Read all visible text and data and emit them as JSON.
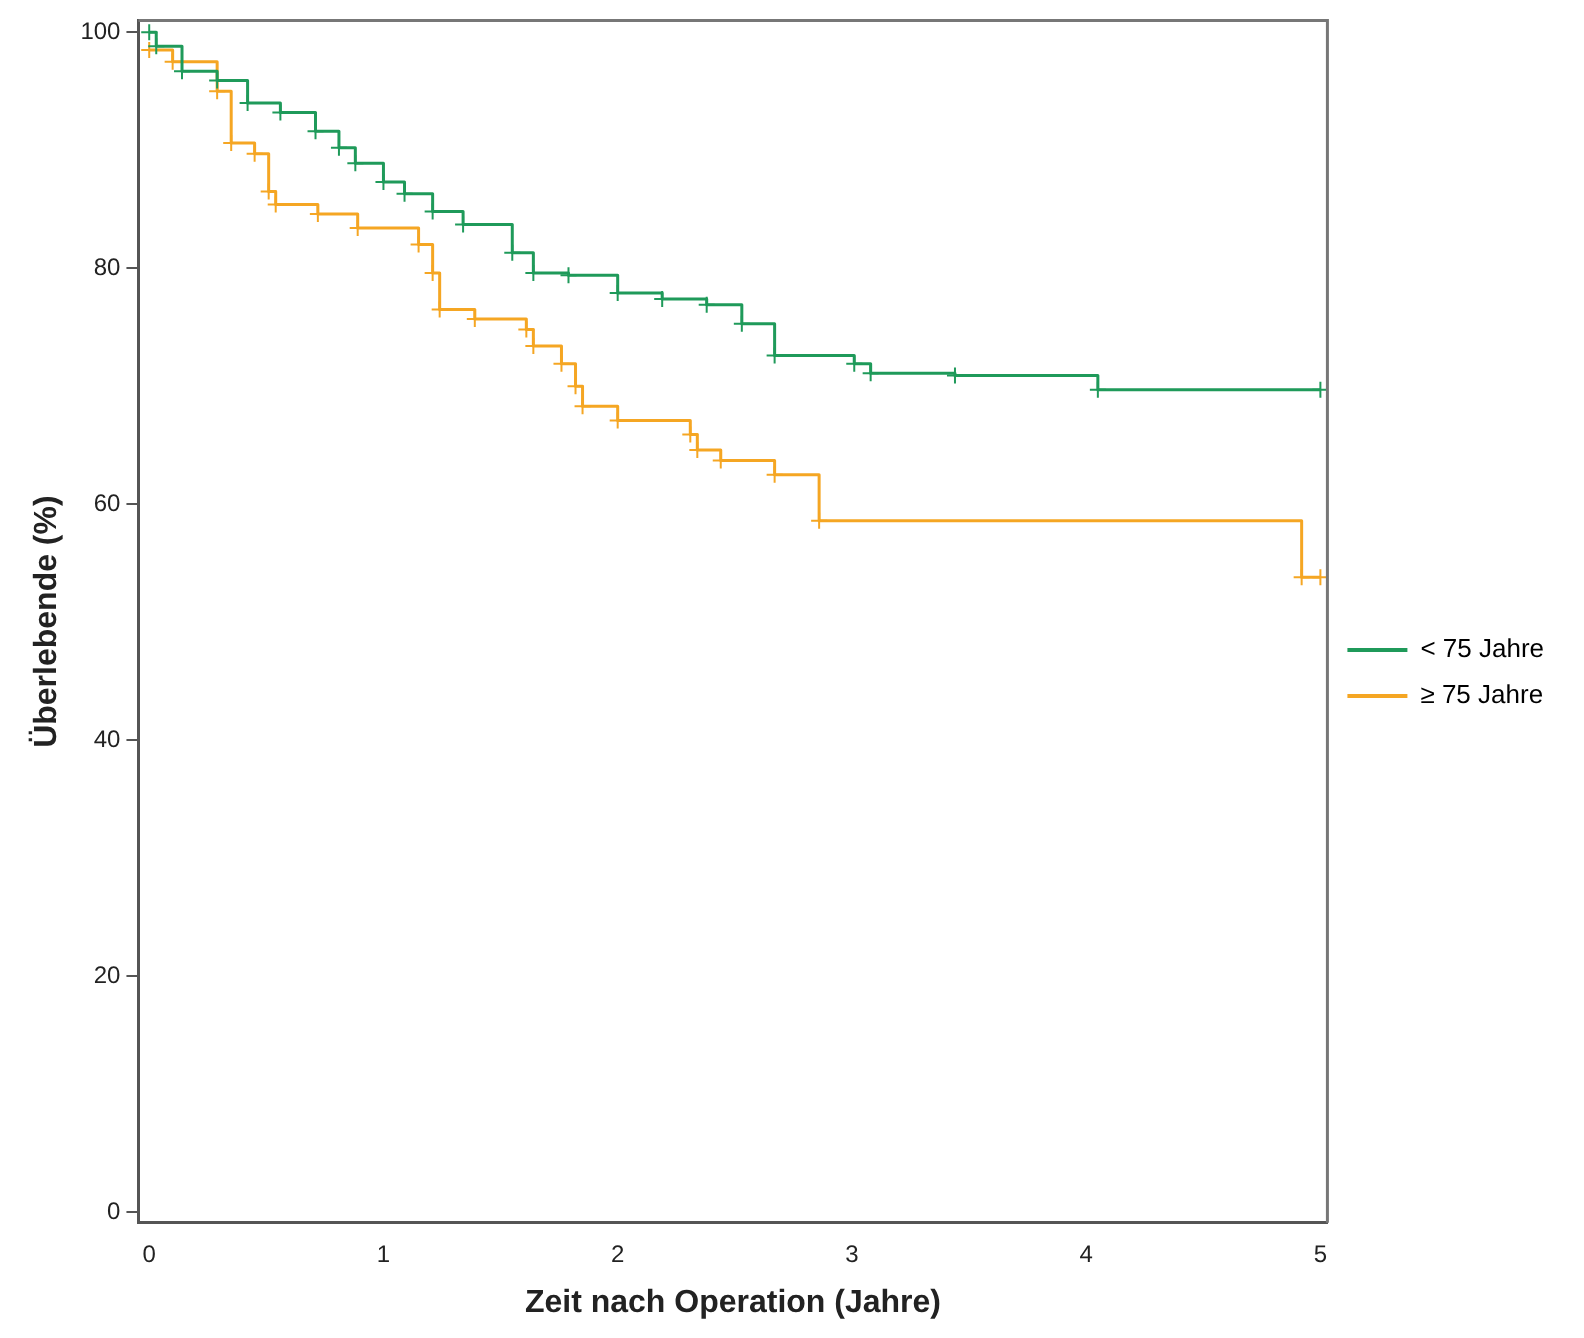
{
  "chart_data": {
    "type": "step",
    "xlabel": "Zeit nach Operation (Jahre)",
    "ylabel": "Überlebende (%)",
    "xlim": [
      -0.046,
      5.03
    ],
    "ylim": [
      -0.9,
      101
    ],
    "xticks": [
      0,
      1,
      2,
      3,
      4,
      5
    ],
    "yticks": [
      0,
      20,
      40,
      60,
      80,
      100
    ],
    "grid": false,
    "legend": "right",
    "marker": "cross",
    "line_style": "solid",
    "series": [
      {
        "name": "< 75 Jahre",
        "color": "#1f9a5a",
        "x": [
          0,
          0.03,
          0.14,
          0.29,
          0.42,
          0.56,
          0.71,
          0.81,
          0.88,
          1.0,
          1.09,
          1.21,
          1.34,
          1.55,
          1.64,
          1.79,
          2.0,
          2.19,
          2.38,
          2.53,
          2.67,
          3.01,
          3.08,
          3.44,
          4.05,
          5.0
        ],
        "values": [
          100,
          98.8,
          96.7,
          95.9,
          94,
          93.2,
          91.6,
          90.2,
          88.9,
          87.3,
          86.3,
          84.8,
          83.7,
          81.3,
          79.6,
          79.4,
          77.9,
          77.4,
          76.9,
          75.3,
          72.6,
          71.9,
          71.1,
          70.9,
          69.7,
          69.7
        ]
      },
      {
        "name": "≥ 75 Jahre",
        "color": "#f5a623",
        "x": [
          0,
          0.1,
          0.29,
          0.35,
          0.45,
          0.51,
          0.54,
          0.72,
          0.89,
          1.15,
          1.21,
          1.24,
          1.39,
          1.61,
          1.64,
          1.76,
          1.82,
          1.85,
          2.0,
          2.31,
          2.34,
          2.44,
          2.67,
          2.86,
          4.92,
          5.0
        ],
        "values": [
          98.5,
          97.5,
          95,
          90.6,
          89.7,
          86.5,
          85.4,
          84.6,
          83.4,
          82,
          79.6,
          76.5,
          75.7,
          74.8,
          73.4,
          71.9,
          70,
          68.3,
          67.1,
          65.9,
          64.6,
          63.7,
          62.5,
          58.6,
          53.8,
          53.8
        ]
      }
    ]
  }
}
